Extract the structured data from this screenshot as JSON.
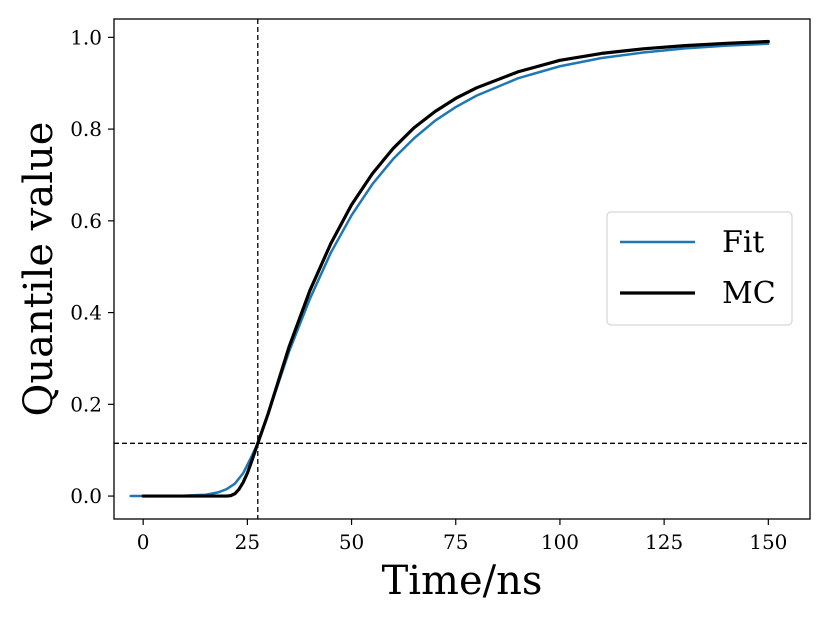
{
  "chart_data": {
    "type": "line",
    "title": "",
    "xlabel": "Time/ns",
    "ylabel": "Quantile value",
    "xlim": [
      -7,
      160
    ],
    "ylim": [
      -0.05,
      1.04
    ],
    "xticks": [
      0,
      25,
      50,
      75,
      100,
      125,
      150
    ],
    "xtick_labels": [
      "0",
      "25",
      "50",
      "75",
      "100",
      "125",
      "150"
    ],
    "yticks": [
      0.0,
      0.2,
      0.4,
      0.6,
      0.8,
      1.0
    ],
    "ytick_labels": [
      "0.0",
      "0.2",
      "0.4",
      "0.6",
      "0.8",
      "1.0"
    ],
    "grid": false,
    "legend_position": "center-right",
    "reference_lines": {
      "vertical_x": 27.5,
      "horizontal_y": 0.115
    },
    "series": [
      {
        "name": "Fit",
        "color": "#1f77b4",
        "x": [
          -3,
          0,
          5,
          10,
          15,
          18,
          20,
          22,
          24,
          26,
          27.5,
          30,
          35,
          40,
          45,
          50,
          55,
          60,
          65,
          70,
          75,
          80,
          90,
          100,
          110,
          120,
          130,
          140,
          150
        ],
        "y": [
          0.0,
          0.0,
          0.0,
          0.001,
          0.003,
          0.008,
          0.015,
          0.027,
          0.05,
          0.086,
          0.115,
          0.18,
          0.315,
          0.43,
          0.53,
          0.612,
          0.68,
          0.735,
          0.78,
          0.818,
          0.848,
          0.873,
          0.911,
          0.937,
          0.955,
          0.967,
          0.976,
          0.982,
          0.986
        ]
      },
      {
        "name": "MC",
        "color": "#000000",
        "x": [
          0,
          5,
          10,
          15,
          20,
          21,
          22,
          23,
          24,
          25,
          26,
          27.5,
          30,
          35,
          40,
          45,
          50,
          55,
          60,
          65,
          70,
          75,
          80,
          90,
          100,
          110,
          120,
          130,
          140,
          150
        ],
        "y": [
          0.0,
          0.0,
          0.0,
          0.0,
          0.0,
          0.001,
          0.005,
          0.015,
          0.03,
          0.05,
          0.075,
          0.115,
          0.18,
          0.325,
          0.448,
          0.55,
          0.635,
          0.703,
          0.758,
          0.803,
          0.838,
          0.867,
          0.89,
          0.925,
          0.95,
          0.965,
          0.975,
          0.982,
          0.987,
          0.991
        ]
      }
    ]
  }
}
